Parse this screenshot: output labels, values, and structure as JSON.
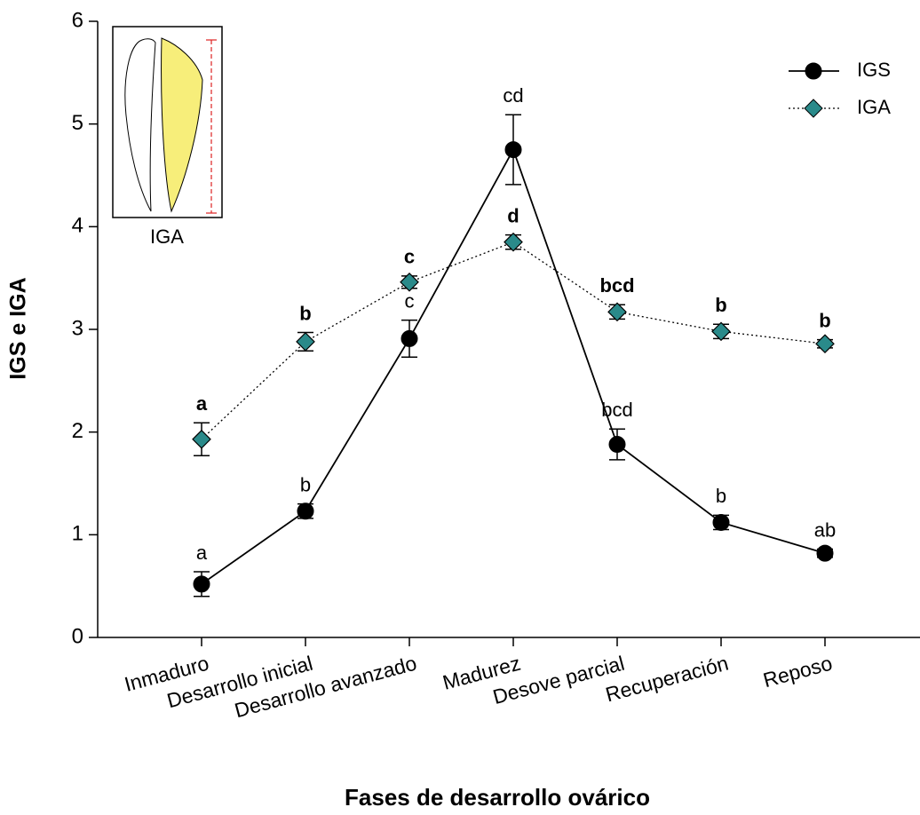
{
  "chart_data": {
    "type": "line",
    "x_label": "Fases de desarrollo ovárico",
    "y_label": "IGS e IGA",
    "inset_label": "IGA",
    "categories": [
      "Inmaduro",
      "Desarrollo inicial",
      "Desarrollo avanzado",
      "Madurez",
      "Desove parcial",
      "Recuperación",
      "Reposo"
    ],
    "series": [
      {
        "name": "IGS",
        "color": "#000000",
        "line": "solid",
        "marker": "circle",
        "values": [
          0.52,
          1.23,
          2.91,
          4.75,
          1.88,
          1.12,
          0.82
        ],
        "errors": [
          0.12,
          0.07,
          0.18,
          0.34,
          0.15,
          0.07,
          0.04
        ],
        "labels": [
          "a",
          "b",
          "c",
          "cd",
          "bcd",
          "b",
          "ab"
        ],
        "bold_labels": false
      },
      {
        "name": "IGA",
        "color": "#2a8a8a",
        "line": "dotted",
        "marker": "diamond",
        "values": [
          1.93,
          2.88,
          3.46,
          3.85,
          3.17,
          2.98,
          2.86
        ],
        "errors": [
          0.16,
          0.09,
          0.06,
          0.07,
          0.07,
          0.07,
          0.04
        ],
        "labels": [
          "a",
          "b",
          "c",
          "d",
          "bcd",
          "b",
          "b"
        ],
        "bold_labels": true
      }
    ],
    "ylim": [
      0,
      6
    ],
    "yticks": [
      0,
      1,
      2,
      3,
      4,
      5,
      6
    ],
    "grid": false,
    "legend": "top-right"
  }
}
